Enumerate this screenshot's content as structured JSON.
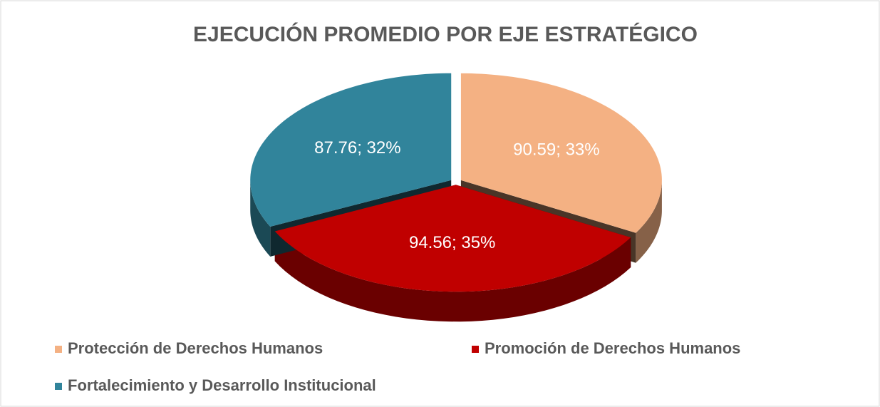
{
  "chart_data": {
    "type": "pie",
    "title": "EJECUCIÓN PROMEDIO POR EJE ESTRATÉGICO",
    "categories": [
      "Protección de Derechos Humanos",
      "Promoción de Derechos Humanos",
      "Fortalecimiento y Desarrollo Institucional"
    ],
    "values": [
      90.59,
      94.56,
      87.76
    ],
    "value_labels": [
      "90.59; 33%",
      "94.56; 35%",
      "87.76; 32%"
    ],
    "colors": [
      "#f4b183",
      "#c00000",
      "#31849b"
    ],
    "legend": "bottom"
  }
}
